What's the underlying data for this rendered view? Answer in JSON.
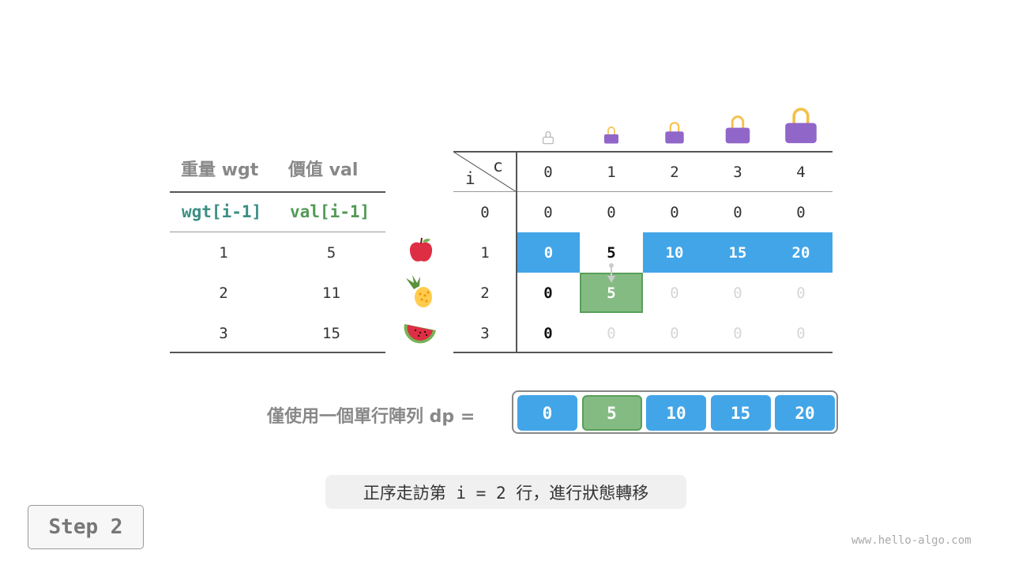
{
  "left_table": {
    "headers": [
      "重量 wgt",
      "價值 val"
    ],
    "subheaders": [
      "wgt[i-1]",
      "val[i-1]"
    ],
    "subheader_colors": [
      "#3a8f85",
      "#529a55"
    ],
    "rows": [
      [
        "1",
        "5"
      ],
      [
        "2",
        "11"
      ],
      [
        "3",
        "15"
      ]
    ],
    "item_icons": [
      "apple-icon",
      "pineapple-icon",
      "watermelon-icon"
    ]
  },
  "dp_table": {
    "corner_col_label": "c",
    "corner_row_label": "i",
    "col_headers": [
      "0",
      "1",
      "2",
      "3",
      "4"
    ],
    "col_icons": [
      "bag-capacity-0-icon",
      "bag-capacity-1-icon",
      "bag-capacity-2-icon",
      "bag-capacity-3-icon",
      "bag-capacity-4-icon"
    ],
    "row_headers": [
      "0",
      "1",
      "2",
      "3"
    ],
    "cells": [
      [
        {
          "v": "0",
          "s": "normal"
        },
        {
          "v": "0",
          "s": "normal"
        },
        {
          "v": "0",
          "s": "normal"
        },
        {
          "v": "0",
          "s": "normal"
        },
        {
          "v": "0",
          "s": "normal"
        }
      ],
      [
        {
          "v": "0",
          "s": "blue"
        },
        {
          "v": "5",
          "s": "bold"
        },
        {
          "v": "10",
          "s": "blue"
        },
        {
          "v": "15",
          "s": "blue"
        },
        {
          "v": "20",
          "s": "blue"
        }
      ],
      [
        {
          "v": "0",
          "s": "bold"
        },
        {
          "v": "5",
          "s": "green"
        },
        {
          "v": "0",
          "s": "faint"
        },
        {
          "v": "0",
          "s": "faint"
        },
        {
          "v": "0",
          "s": "faint"
        }
      ],
      [
        {
          "v": "0",
          "s": "bold"
        },
        {
          "v": "0",
          "s": "faint"
        },
        {
          "v": "0",
          "s": "faint"
        },
        {
          "v": "0",
          "s": "faint"
        },
        {
          "v": "0",
          "s": "faint"
        }
      ]
    ]
  },
  "dp_array": {
    "label": "僅使用一個單行陣列 dp =",
    "values": [
      "0",
      "5",
      "10",
      "15",
      "20"
    ],
    "highlight_index": 1
  },
  "caption": "正序走訪第 i = 2 行，進行狀態轉移",
  "step_label": "Step 2",
  "watermark": "www.hello-algo.com",
  "colors": {
    "blue": "#42a5e8",
    "green": "#84bb83",
    "bag": "#9166c9",
    "handle": "#f5c04a"
  }
}
